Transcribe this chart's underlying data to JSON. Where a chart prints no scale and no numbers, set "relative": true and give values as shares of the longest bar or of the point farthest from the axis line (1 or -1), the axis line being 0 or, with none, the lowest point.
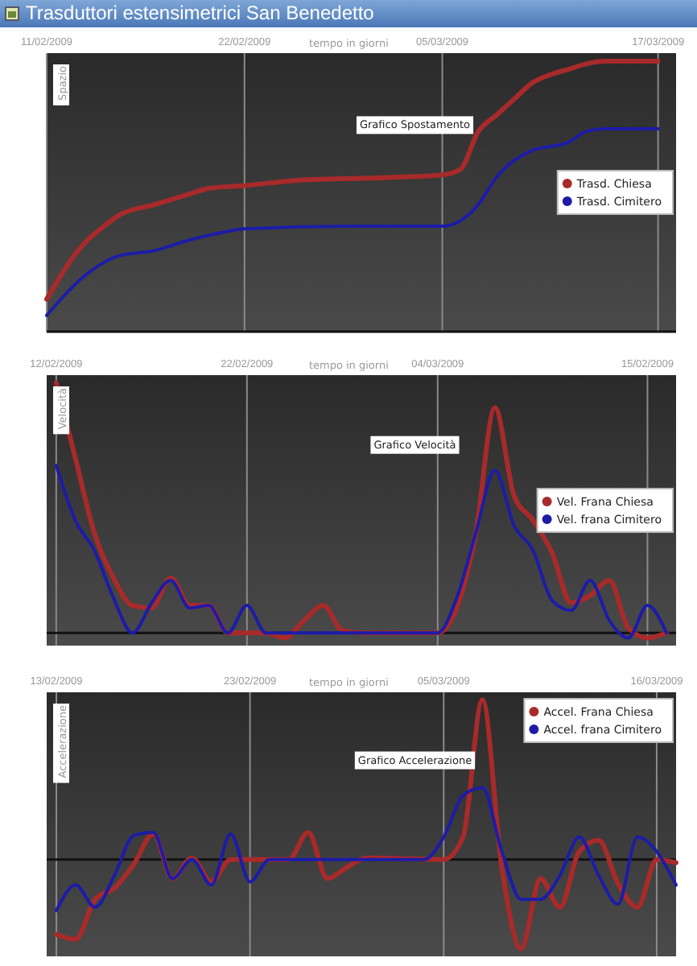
{
  "chart_data": [
    {
      "type": "line",
      "title": "Trasduttori estensimetrici San Benedetto",
      "subtitle": "Grafico Spostamento",
      "xlabel": "tempo in giorni",
      "ylabel": "Spazio",
      "relative": true,
      "grid": "x",
      "legend": "right",
      "xlim": [
        "2009-02-11",
        "2009-03-18"
      ],
      "xticks": [
        {
          "value": "2009-02-11",
          "label": "11/02/2009"
        },
        {
          "value": "2009-02-22",
          "label": "22/02/2009"
        },
        {
          "value": "2009-03-05",
          "label": "05/03/2009"
        },
        {
          "value": "2009-03-17",
          "label": "17/03/2009"
        }
      ],
      "series": [
        {
          "name": "Trasd. Chiesa",
          "color": "#a82a2a",
          "x": [
            "2009-02-11",
            "2009-02-12",
            "2009-02-13",
            "2009-02-14",
            "2009-02-15",
            "2009-02-17",
            "2009-02-19",
            "2009-02-20",
            "2009-02-22",
            "2009-02-25",
            "2009-03-02",
            "2009-03-05",
            "2009-03-06",
            "2009-03-07",
            "2009-03-08",
            "2009-03-09",
            "2009-03-10",
            "2009-03-11",
            "2009-03-12",
            "2009-03-13",
            "2009-03-14",
            "2009-03-17"
          ],
          "values": [
            0.12,
            0.23,
            0.32,
            0.38,
            0.43,
            0.47,
            0.51,
            0.53,
            0.54,
            0.56,
            0.57,
            0.58,
            0.6,
            0.74,
            0.8,
            0.86,
            0.92,
            0.95,
            0.97,
            0.99,
            1.0,
            1.0
          ]
        },
        {
          "name": "Trasd. Cimitero",
          "color": "#1c1ca8",
          "x": [
            "2009-02-11",
            "2009-02-13",
            "2009-02-15",
            "2009-02-17",
            "2009-02-19",
            "2009-02-21",
            "2009-02-22",
            "2009-02-28",
            "2009-03-05",
            "2009-03-07",
            "2009-03-08",
            "2009-03-10",
            "2009-03-12",
            "2009-03-13",
            "2009-03-14",
            "2009-03-17"
          ],
          "values": [
            0.06,
            0.2,
            0.28,
            0.3,
            0.34,
            0.37,
            0.38,
            0.39,
            0.39,
            0.47,
            0.57,
            0.67,
            0.7,
            0.74,
            0.75,
            0.75
          ]
        }
      ]
    },
    {
      "type": "line",
      "subtitle": "Grafico Velocità",
      "xlabel": "tempo in giorni",
      "ylabel": "Velocità",
      "relative": true,
      "grid": "x",
      "legend": "right",
      "xlim": [
        "2009-02-11T12:00",
        "2009-03-16T12:00"
      ],
      "xticks": [
        {
          "value": "2009-02-12",
          "label": "12/02/2009"
        },
        {
          "value": "2009-02-22",
          "label": "22/02/2009"
        },
        {
          "value": "2009-03-04",
          "label": "04/03/2009"
        },
        {
          "value": "2009-03-15",
          "label": "15/02/2009"
        }
      ],
      "series": [
        {
          "name": "Vel. Frana Chiesa",
          "color": "#a82a2a",
          "x": [
            "2009-02-12",
            "2009-02-13",
            "2009-02-14",
            "2009-02-15",
            "2009-02-16",
            "2009-02-17",
            "2009-02-18",
            "2009-02-19",
            "2009-02-20",
            "2009-02-21",
            "2009-02-23",
            "2009-02-24",
            "2009-02-25",
            "2009-02-26",
            "2009-02-27",
            "2009-02-28",
            "2009-03-04",
            "2009-03-05",
            "2009-03-06",
            "2009-03-07",
            "2009-03-08",
            "2009-03-09",
            "2009-03-10",
            "2009-03-11",
            "2009-03-12",
            "2009-03-13",
            "2009-03-14",
            "2009-03-15",
            "2009-03-16"
          ],
          "values": [
            1.0,
            0.7,
            0.4,
            0.22,
            0.11,
            0.1,
            0.22,
            0.11,
            0.11,
            0,
            0,
            -0.02,
            0.05,
            0.11,
            0.01,
            0,
            0,
            0.1,
            0.4,
            0.9,
            0.55,
            0.45,
            0.32,
            0.12,
            0.15,
            0.21,
            0.02,
            -0.02,
            0
          ]
        },
        {
          "name": "Vel. frana Cimitero",
          "color": "#1c1ca8",
          "x": [
            "2009-02-12",
            "2009-02-13",
            "2009-02-14",
            "2009-02-15",
            "2009-02-16",
            "2009-02-17",
            "2009-02-18",
            "2009-02-19",
            "2009-02-20",
            "2009-02-21",
            "2009-02-22",
            "2009-02-23",
            "2009-03-04",
            "2009-03-05",
            "2009-03-06",
            "2009-03-07",
            "2009-03-08",
            "2009-03-09",
            "2009-03-10",
            "2009-03-11",
            "2009-03-12",
            "2009-03-13",
            "2009-03-14",
            "2009-03-15",
            "2009-03-16"
          ],
          "values": [
            0.67,
            0.45,
            0.33,
            0.14,
            0,
            0.12,
            0.21,
            0.1,
            0.11,
            0,
            0.11,
            0,
            0,
            0.14,
            0.4,
            0.65,
            0.43,
            0.33,
            0.13,
            0.09,
            0.21,
            0.05,
            -0.02,
            0.11,
            0
          ]
        }
      ]
    },
    {
      "type": "line",
      "subtitle": "Grafico Accelerazione",
      "xlabel": "tempo in giorni",
      "ylabel": "Accelerazione",
      "relative": true,
      "grid": "x",
      "legend": "top right",
      "xlim": [
        "2009-02-12T12:00",
        "2009-03-17"
      ],
      "xticks": [
        {
          "value": "2009-02-13",
          "label": "13/02/2009"
        },
        {
          "value": "2009-02-23",
          "label": "23/02/2009"
        },
        {
          "value": "2009-03-05",
          "label": "05/03/2009"
        },
        {
          "value": "2009-03-16",
          "label": "16/03/2009"
        }
      ],
      "series": [
        {
          "name": "Accel. Frana Chiesa",
          "color": "#a82a2a",
          "x": [
            "2009-02-13",
            "2009-02-14",
            "2009-02-15",
            "2009-02-16",
            "2009-02-17",
            "2009-02-18",
            "2009-02-19",
            "2009-02-20",
            "2009-02-21",
            "2009-02-22",
            "2009-02-25",
            "2009-02-26",
            "2009-02-27",
            "2009-02-28",
            "2009-03-01",
            "2009-03-05",
            "2009-03-06",
            "2009-03-07",
            "2009-03-08",
            "2009-03-09",
            "2009-03-10",
            "2009-03-11",
            "2009-03-12",
            "2009-03-13",
            "2009-03-14",
            "2009-03-15",
            "2009-03-16",
            "2009-03-17"
          ],
          "values": [
            -0.47,
            -0.5,
            -0.25,
            -0.18,
            -0.03,
            0.16,
            -0.12,
            0.01,
            -0.14,
            0,
            0,
            0.17,
            -0.12,
            -0.05,
            0.01,
            0,
            0.14,
            1.0,
            -0.05,
            -0.56,
            -0.12,
            -0.3,
            0.05,
            0.12,
            -0.15,
            -0.3,
            0,
            -0.02
          ]
        },
        {
          "name": "Accel. frana Cimitero",
          "color": "#1c1ca8",
          "x": [
            "2009-02-13",
            "2009-02-14",
            "2009-02-15",
            "2009-02-16",
            "2009-02-17",
            "2009-02-18",
            "2009-02-19",
            "2009-02-20",
            "2009-02-21",
            "2009-02-22",
            "2009-02-23",
            "2009-02-24",
            "2009-03-04",
            "2009-03-05",
            "2009-03-06",
            "2009-03-07",
            "2009-03-08",
            "2009-03-09",
            "2009-03-10",
            "2009-03-11",
            "2009-03-12",
            "2009-03-13",
            "2009-03-14",
            "2009-03-15",
            "2009-03-16",
            "2009-03-17"
          ],
          "values": [
            -0.32,
            -0.16,
            -0.3,
            -0.1,
            0.15,
            0.17,
            -0.12,
            0,
            -0.16,
            0.16,
            -0.14,
            0,
            0,
            0.14,
            0.4,
            0.45,
            0.05,
            -0.25,
            -0.25,
            -0.1,
            0.14,
            -0.1,
            -0.28,
            0.14,
            0.05,
            -0.16
          ]
        }
      ]
    }
  ]
}
